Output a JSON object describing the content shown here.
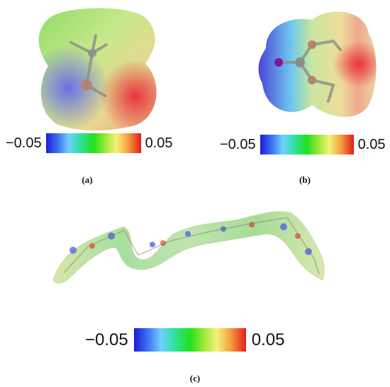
{
  "panels": {
    "a": {
      "caption": "(a)",
      "colorbar": {
        "min_label": "−0.05",
        "max_label": "0.05"
      }
    },
    "b": {
      "caption": "(b)",
      "colorbar": {
        "min_label": "−0.05",
        "max_label": "0.05"
      }
    },
    "c": {
      "caption": "(c)",
      "colorbar": {
        "min_label": "−0.05",
        "max_label": "0.05"
      }
    }
  },
  "colors": {
    "negative": "#1c1cd6",
    "neutral": "#22e01e",
    "positive": "#e21d1d"
  }
}
